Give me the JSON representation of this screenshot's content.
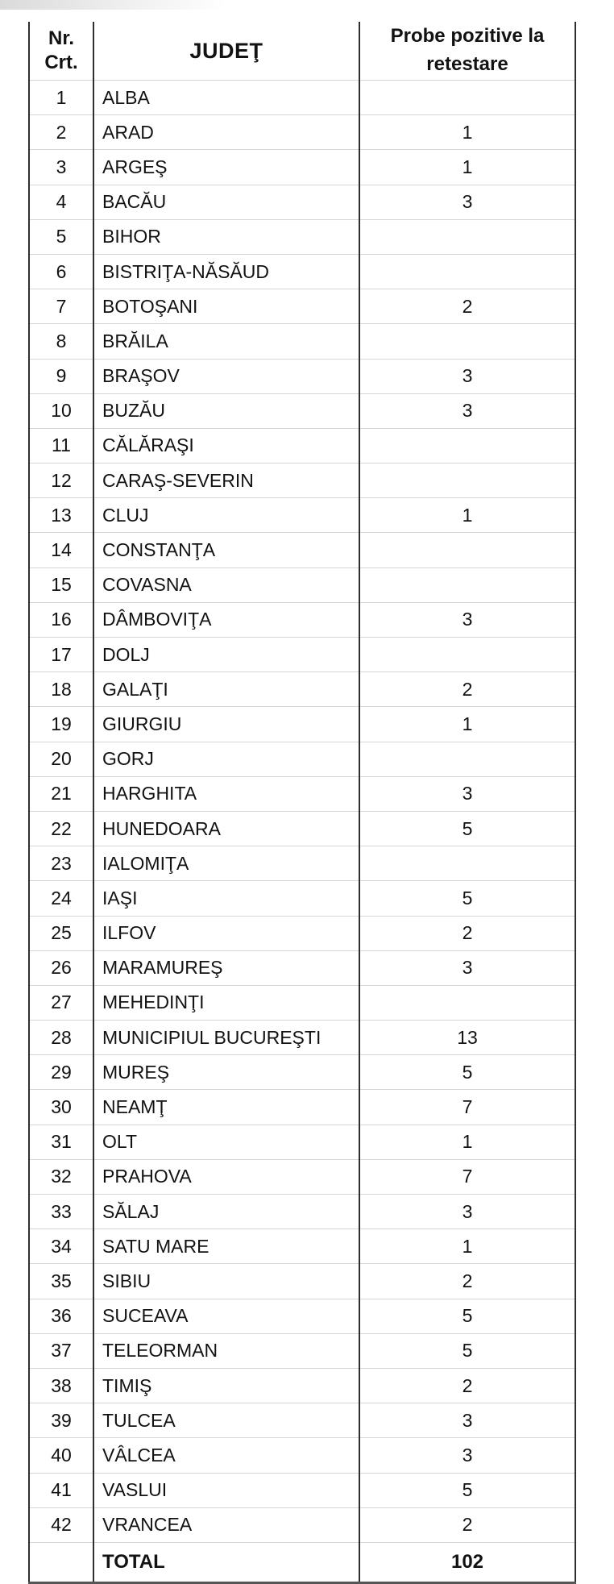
{
  "table": {
    "header": {
      "nr_line1": "Nr.",
      "nr_line2": "Crt.",
      "judet": "JUDEŢ",
      "value": "Probe pozitive la retestare"
    },
    "rows": [
      {
        "nr": "1",
        "judet": "ALBA",
        "value": ""
      },
      {
        "nr": "2",
        "judet": "ARAD",
        "value": "1"
      },
      {
        "nr": "3",
        "judet": "ARGEŞ",
        "value": "1"
      },
      {
        "nr": "4",
        "judet": "BACĂU",
        "value": "3"
      },
      {
        "nr": "5",
        "judet": "BIHOR",
        "value": ""
      },
      {
        "nr": "6",
        "judet": "BISTRIŢA-NĂSĂUD",
        "value": ""
      },
      {
        "nr": "7",
        "judet": "BOTOŞANI",
        "value": "2"
      },
      {
        "nr": "8",
        "judet": "BRĂILA",
        "value": ""
      },
      {
        "nr": "9",
        "judet": "BRAŞOV",
        "value": "3"
      },
      {
        "nr": "10",
        "judet": "BUZĂU",
        "value": "3"
      },
      {
        "nr": "11",
        "judet": "CĂLĂRAŞI",
        "value": ""
      },
      {
        "nr": "12",
        "judet": "CARAŞ-SEVERIN",
        "value": ""
      },
      {
        "nr": "13",
        "judet": "CLUJ",
        "value": "1"
      },
      {
        "nr": "14",
        "judet": "CONSTANŢA",
        "value": ""
      },
      {
        "nr": "15",
        "judet": "COVASNA",
        "value": ""
      },
      {
        "nr": "16",
        "judet": "DÂMBOVIŢA",
        "value": "3"
      },
      {
        "nr": "17",
        "judet": "DOLJ",
        "value": ""
      },
      {
        "nr": "18",
        "judet": "GALAŢI",
        "value": "2"
      },
      {
        "nr": "19",
        "judet": "GIURGIU",
        "value": "1"
      },
      {
        "nr": "20",
        "judet": "GORJ",
        "value": ""
      },
      {
        "nr": "21",
        "judet": "HARGHITA",
        "value": "3"
      },
      {
        "nr": "22",
        "judet": "HUNEDOARA",
        "value": "5"
      },
      {
        "nr": "23",
        "judet": "IALOMIŢA",
        "value": ""
      },
      {
        "nr": "24",
        "judet": "IAŞI",
        "value": "5"
      },
      {
        "nr": "25",
        "judet": "ILFOV",
        "value": "2"
      },
      {
        "nr": "26",
        "judet": "MARAMUREŞ",
        "value": "3"
      },
      {
        "nr": "27",
        "judet": "MEHEDINŢI",
        "value": ""
      },
      {
        "nr": "28",
        "judet": "MUNICIPIUL BUCUREŞTI",
        "value": "13"
      },
      {
        "nr": "29",
        "judet": "MUREŞ",
        "value": "5"
      },
      {
        "nr": "30",
        "judet": "NEAMŢ",
        "value": "7"
      },
      {
        "nr": "31",
        "judet": "OLT",
        "value": "1"
      },
      {
        "nr": "32",
        "judet": "PRAHOVA",
        "value": "7"
      },
      {
        "nr": "33",
        "judet": "SĂLAJ",
        "value": "3"
      },
      {
        "nr": "34",
        "judet": "SATU MARE",
        "value": "1"
      },
      {
        "nr": "35",
        "judet": "SIBIU",
        "value": "2"
      },
      {
        "nr": "36",
        "judet": "SUCEAVA",
        "value": "5"
      },
      {
        "nr": "37",
        "judet": "TELEORMAN",
        "value": "5"
      },
      {
        "nr": "38",
        "judet": "TIMIŞ",
        "value": "2"
      },
      {
        "nr": "39",
        "judet": "TULCEA",
        "value": "3"
      },
      {
        "nr": "40",
        "judet": "VÂLCEA",
        "value": "3"
      },
      {
        "nr": "41",
        "judet": "VASLUI",
        "value": "5"
      },
      {
        "nr": "42",
        "judet": "VRANCEA",
        "value": "2"
      }
    ],
    "total": {
      "label": "TOTAL",
      "value": "102"
    }
  },
  "colors": {
    "border_dark": "#2e2e2e",
    "border_bottom": "#565656",
    "border_light": "#d6d6d6",
    "text": "#121212",
    "background": "#ffffff"
  }
}
